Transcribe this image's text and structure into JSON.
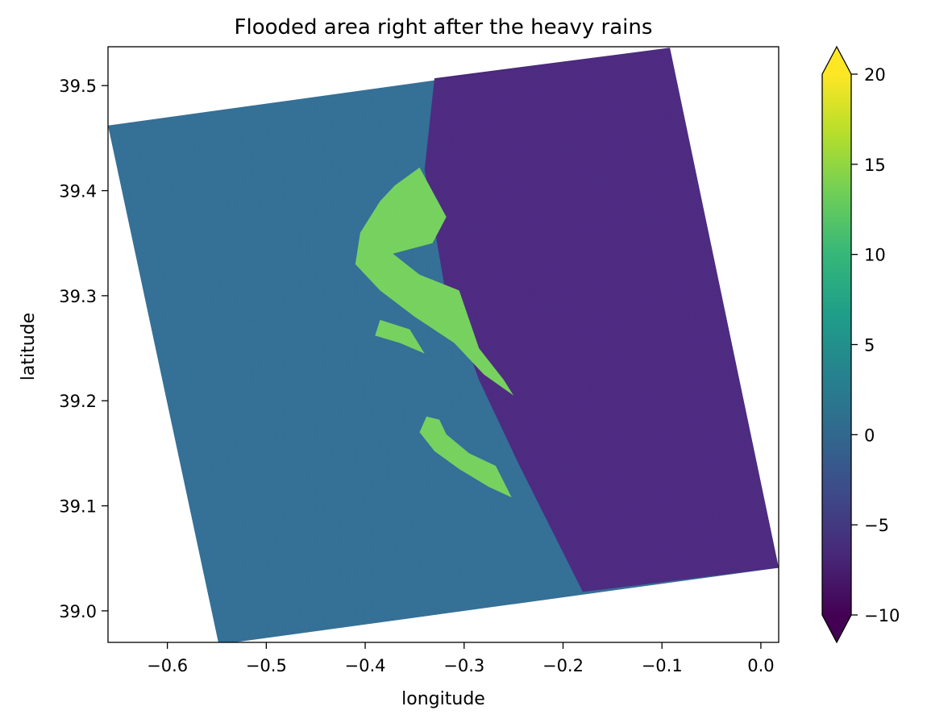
{
  "chart_data": {
    "type": "heatmap",
    "title": "Flooded area right after the heavy rains",
    "xlabel": "longitude",
    "ylabel": "latitude",
    "xlim": [
      -0.66,
      0.018
    ],
    "ylim": [
      38.97,
      39.537
    ],
    "x_ticks": [
      -0.6,
      -0.5,
      -0.4,
      -0.3,
      -0.2,
      -0.1,
      0.0
    ],
    "x_tick_labels": [
      "−0.6",
      "−0.5",
      "−0.4",
      "−0.3",
      "−0.2",
      "−0.1",
      "0.0"
    ],
    "y_ticks": [
      39.0,
      39.1,
      39.2,
      39.3,
      39.4,
      39.5
    ],
    "y_tick_labels": [
      "39.0",
      "39.1",
      "39.2",
      "39.3",
      "39.4",
      "39.5"
    ],
    "colorbar": {
      "colormap": "viridis",
      "vmin": -10,
      "vmax": 20,
      "extend": "both",
      "ticks": [
        -10,
        -5,
        0,
        5,
        10,
        15,
        20
      ],
      "tick_labels": [
        "−10",
        "−5",
        "0",
        "5",
        "10",
        "15",
        "20"
      ],
      "stops": [
        "#440154",
        "#482878",
        "#3e4989",
        "#31688e",
        "#26828e",
        "#1f9e89",
        "#35b779",
        "#6ece58",
        "#b5de2b",
        "#fde725"
      ]
    },
    "footprint_corners_lonlat": [
      [
        -0.66,
        39.462
      ],
      [
        -0.092,
        39.536
      ],
      [
        0.018,
        39.041
      ],
      [
        -0.548,
        38.968
      ]
    ],
    "regions": [
      {
        "kind": "darker-swath",
        "polygon_lonlat": [
          [
            -0.33,
            39.507
          ],
          [
            -0.092,
            39.536
          ],
          [
            0.018,
            39.041
          ],
          [
            -0.18,
            39.018
          ],
          [
            -0.245,
            39.14
          ],
          [
            -0.285,
            39.22
          ],
          [
            -0.32,
            39.31
          ],
          [
            -0.34,
            39.42
          ]
        ]
      },
      {
        "kind": "flooded",
        "polygon_lonlat": [
          [
            -0.345,
            39.422
          ],
          [
            -0.318,
            39.375
          ],
          [
            -0.332,
            39.35
          ],
          [
            -0.372,
            39.34
          ],
          [
            -0.345,
            39.32
          ],
          [
            -0.305,
            39.305
          ],
          [
            -0.285,
            39.25
          ],
          [
            -0.26,
            39.22
          ],
          [
            -0.25,
            39.205
          ],
          [
            -0.28,
            39.225
          ],
          [
            -0.31,
            39.255
          ],
          [
            -0.35,
            39.28
          ],
          [
            -0.385,
            39.305
          ],
          [
            -0.41,
            39.33
          ],
          [
            -0.405,
            39.36
          ],
          [
            -0.385,
            39.39
          ],
          [
            -0.37,
            39.405
          ]
        ]
      },
      {
        "kind": "flooded",
        "polygon_lonlat": [
          [
            -0.385,
            39.277
          ],
          [
            -0.355,
            39.268
          ],
          [
            -0.34,
            39.245
          ],
          [
            -0.365,
            39.255
          ],
          [
            -0.39,
            39.262
          ]
        ]
      },
      {
        "kind": "flooded",
        "polygon_lonlat": [
          [
            -0.325,
            39.182
          ],
          [
            -0.318,
            39.168
          ],
          [
            -0.295,
            39.15
          ],
          [
            -0.268,
            39.138
          ],
          [
            -0.252,
            39.108
          ],
          [
            -0.275,
            39.118
          ],
          [
            -0.305,
            39.135
          ],
          [
            -0.33,
            39.152
          ],
          [
            -0.345,
            39.17
          ],
          [
            -0.338,
            39.185
          ]
        ]
      }
    ]
  }
}
